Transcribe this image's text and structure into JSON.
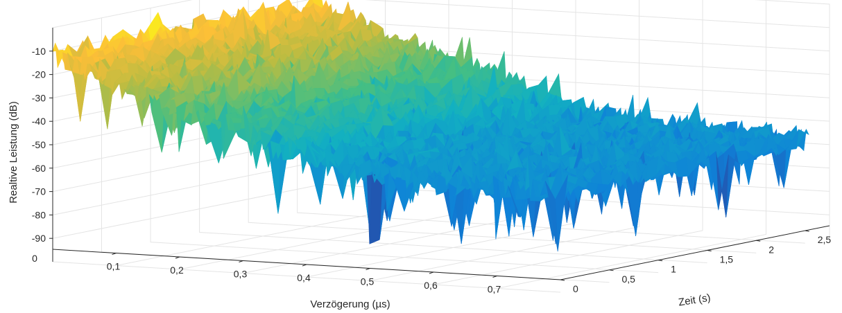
{
  "chart_data": {
    "type": "surface",
    "title": "",
    "xlabel": "Verzögerung (µs)",
    "ylabel": "Zeit (s)",
    "zlabel": "Realtive Leistung (dB)",
    "xlim": [
      0,
      0.8
    ],
    "ylim": [
      0,
      2.75
    ],
    "zlim": [
      -100,
      0
    ],
    "x_ticks": [
      {
        "value": 0.1,
        "label": "0,1"
      },
      {
        "value": 0.2,
        "label": "0,2"
      },
      {
        "value": 0.3,
        "label": "0,3"
      },
      {
        "value": 0.4,
        "label": "0,4"
      },
      {
        "value": 0.5,
        "label": "0,5"
      },
      {
        "value": 0.6,
        "label": "0,6"
      },
      {
        "value": 0.7,
        "label": "0,7"
      }
    ],
    "y_ticks": [
      {
        "value": 0,
        "label": "0"
      },
      {
        "value": 0.5,
        "label": "0,5"
      },
      {
        "value": 1,
        "label": "1"
      },
      {
        "value": 1.5,
        "label": "1,5"
      },
      {
        "value": 2,
        "label": "2"
      },
      {
        "value": 2.5,
        "label": "2,5"
      }
    ],
    "z_ticks": [
      {
        "value": -10,
        "label": "-10"
      },
      {
        "value": -20,
        "label": "-20"
      },
      {
        "value": -30,
        "label": "-30"
      },
      {
        "value": -40,
        "label": "-40"
      },
      {
        "value": -50,
        "label": "-50"
      },
      {
        "value": -60,
        "label": "-60"
      },
      {
        "value": -70,
        "label": "-70"
      },
      {
        "value": -80,
        "label": "-80"
      },
      {
        "value": -90,
        "label": "-90"
      }
    ],
    "origin_label": "0",
    "colormap": "parula",
    "grid": true,
    "surface_profile": {
      "delay_us": [
        0.0,
        0.05,
        0.1,
        0.15,
        0.2,
        0.25,
        0.3,
        0.35,
        0.4,
        0.45,
        0.5,
        0.55,
        0.6,
        0.65,
        0.7,
        0.75,
        0.8
      ],
      "mean_power_db": [
        -12,
        -18,
        -22,
        -27,
        -31,
        -36,
        -40,
        -45,
        -49,
        -52,
        -54,
        -55,
        -56,
        -56,
        -57,
        -57,
        -58
      ]
    }
  }
}
